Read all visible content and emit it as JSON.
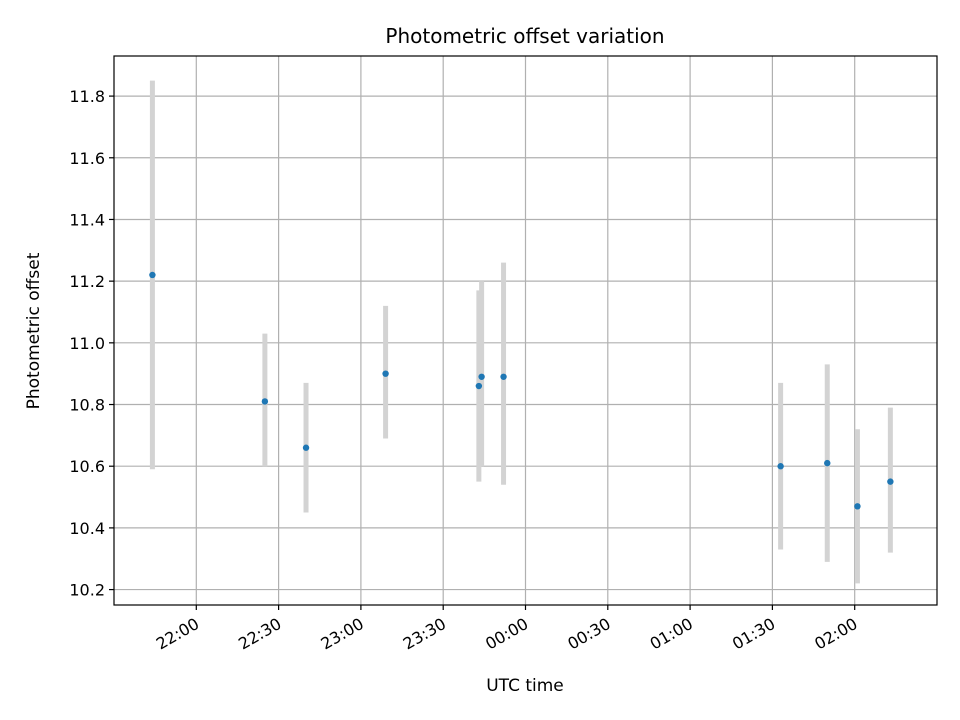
{
  "chart_data": {
    "type": "scatter",
    "title": "Photometric offset variation",
    "xlabel": "UTC time",
    "ylabel": "Photometric offset",
    "x_tick_labels": [
      "22:00",
      "22:30",
      "23:00",
      "23:30",
      "00:00",
      "00:30",
      "01:00",
      "01:30",
      "02:00"
    ],
    "x_tick_hours": [
      22.0,
      22.5,
      23.0,
      23.5,
      24.0,
      24.5,
      25.0,
      25.5,
      26.0
    ],
    "xlim_hours": [
      21.5,
      26.5
    ],
    "y_ticks": [
      10.2,
      10.4,
      10.6,
      10.8,
      11.0,
      11.2,
      11.4,
      11.6,
      11.8
    ],
    "y_tick_labels": [
      "10.2",
      "10.4",
      "10.6",
      "10.8",
      "11.0",
      "11.2",
      "11.4",
      "11.6",
      "11.8"
    ],
    "ylim": [
      10.15,
      11.93
    ],
    "grid": true,
    "colors": {
      "point": "#1f77b4",
      "errorbar": "#d3d3d3",
      "grid": "#b0b0b0"
    },
    "points": [
      {
        "time": "21:44",
        "y": 11.22,
        "ylow": 10.59,
        "yhigh": 11.85
      },
      {
        "time": "22:25",
        "y": 10.81,
        "ylow": 10.6,
        "yhigh": 11.03
      },
      {
        "time": "22:40",
        "y": 10.66,
        "ylow": 10.45,
        "yhigh": 10.87
      },
      {
        "time": "23:09",
        "y": 10.9,
        "ylow": 10.69,
        "yhigh": 11.12
      },
      {
        "time": "23:43",
        "y": 10.86,
        "ylow": 10.55,
        "yhigh": 11.17
      },
      {
        "time": "23:44",
        "y": 10.89,
        "ylow": 10.6,
        "yhigh": 11.2
      },
      {
        "time": "23:52",
        "y": 10.89,
        "ylow": 10.54,
        "yhigh": 11.26
      },
      {
        "time": "01:33",
        "y": 10.6,
        "ylow": 10.33,
        "yhigh": 10.87
      },
      {
        "time": "01:50",
        "y": 10.61,
        "ylow": 10.29,
        "yhigh": 10.93
      },
      {
        "time": "02:01",
        "y": 10.47,
        "ylow": 10.22,
        "yhigh": 10.72
      },
      {
        "time": "02:13",
        "y": 10.55,
        "ylow": 10.32,
        "yhigh": 10.79
      }
    ]
  }
}
